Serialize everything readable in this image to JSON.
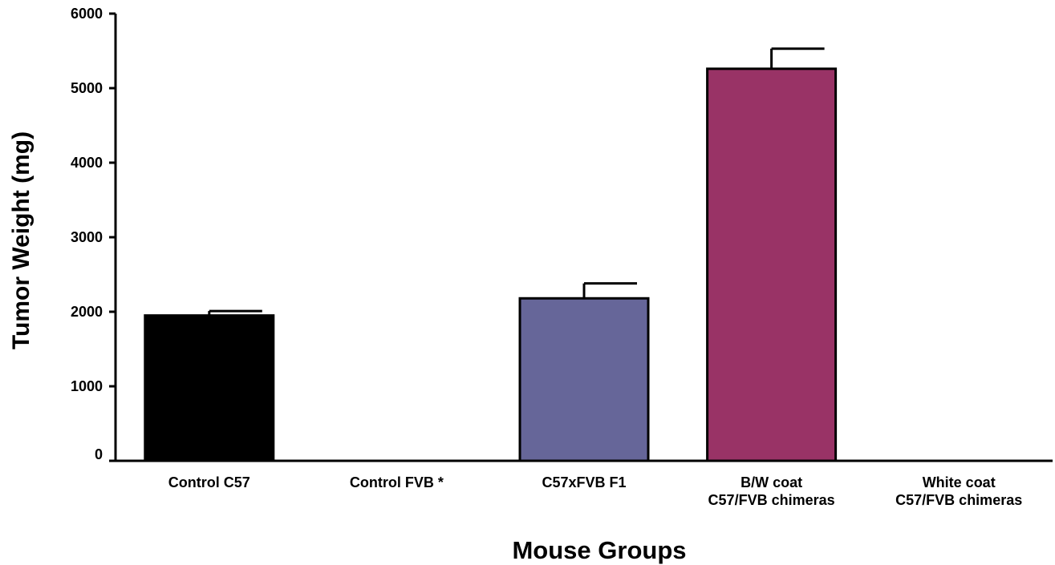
{
  "chart_data": {
    "type": "bar",
    "title": "",
    "xlabel": "Mouse Groups",
    "ylabel": "Tumor Weight (mg)",
    "ylim": [
      0,
      6000
    ],
    "yticks": [
      0,
      1000,
      2000,
      3000,
      4000,
      5000,
      6000
    ],
    "grid": false,
    "legend": "none",
    "categories": [
      [
        "Control C57"
      ],
      [
        "Control FVB *"
      ],
      [
        "C57xFVB F1"
      ],
      [
        "B/W coat",
        "C57/FVB chimeras"
      ],
      [
        "White coat",
        "C57/FVB chimeras"
      ]
    ],
    "values": [
      1950,
      0,
      2180,
      5260,
      0
    ],
    "errors": [
      60,
      0,
      200,
      270,
      0
    ],
    "colors": [
      "#000000",
      "#ffffff",
      "#666699",
      "#993366",
      "#ffffff"
    ]
  }
}
